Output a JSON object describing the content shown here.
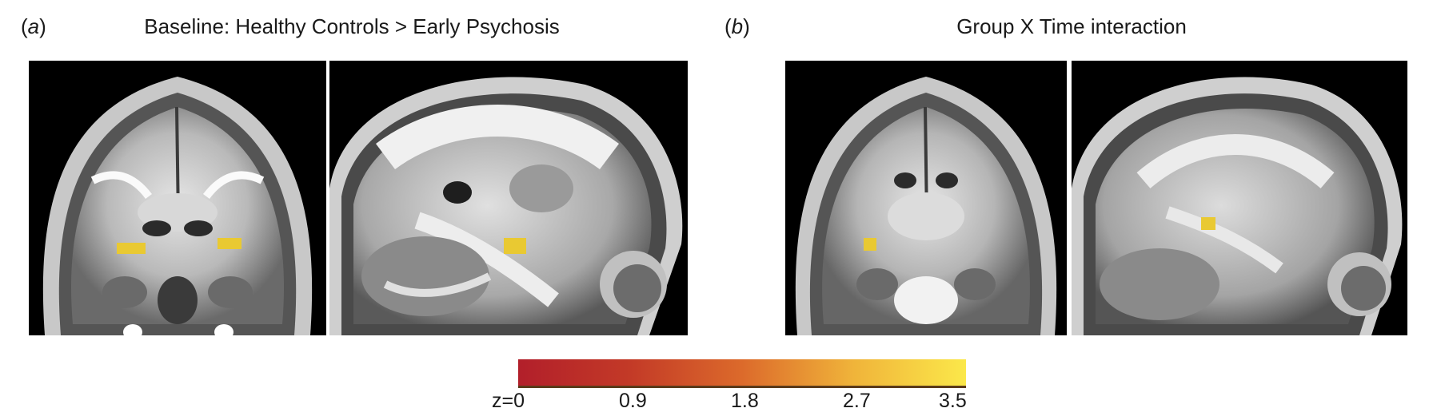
{
  "panel_a": {
    "letter": "a",
    "title": "Baseline: Healthy Controls > Early Psychosis"
  },
  "panel_b": {
    "letter": "b",
    "title": "Group X Time interaction"
  },
  "colorbar": {
    "labels": [
      "z=0",
      "0.9",
      "1.8",
      "2.7",
      "3.5"
    ],
    "colors": [
      "#b21f2a",
      "#dc6a2b",
      "#fbe84a"
    ]
  },
  "views": [
    "coronal",
    "sagittal",
    "coronal",
    "sagittal"
  ],
  "cluster_color": "#e9c932"
}
